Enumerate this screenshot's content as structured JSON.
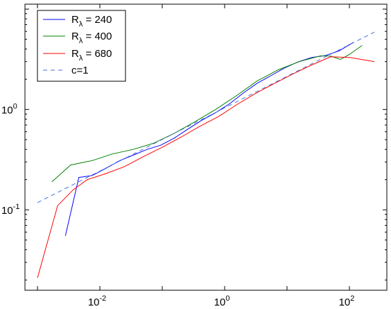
{
  "chart_data": {
    "type": "line",
    "title": "",
    "xlabel": "",
    "ylabel": "",
    "x_scale": "log",
    "y_scale": "log",
    "xlim": [
      0.00063,
      398
    ],
    "ylim": [
      0.0158,
      11.2
    ],
    "grid": false,
    "legend_position": "top-left",
    "x_ticks": [
      {
        "value": 0.01,
        "base": "10",
        "exp": "-2"
      },
      {
        "value": 1,
        "base": "10",
        "exp": "0"
      },
      {
        "value": 100,
        "base": "10",
        "exp": "2"
      }
    ],
    "y_ticks": [
      {
        "value": 0.1,
        "base": "10",
        "exp": "-1"
      },
      {
        "value": 1,
        "base": "10",
        "exp": "0"
      }
    ],
    "series": [
      {
        "name": "R_λ = 240",
        "label_main": "R",
        "label_sub": "λ",
        "label_rest": " = 240",
        "color": "#0000ff",
        "dash": "solid",
        "x": [
          0.0028,
          0.0046,
          0.0076,
          0.0126,
          0.021,
          0.034,
          0.057,
          0.094,
          0.157,
          0.26,
          0.43,
          0.72,
          1.2,
          2.0,
          3.3,
          5.5,
          9.1,
          15.1,
          25,
          42,
          69,
          115
        ],
        "y": [
          0.055,
          0.21,
          0.22,
          0.26,
          0.31,
          0.35,
          0.4,
          0.44,
          0.52,
          0.64,
          0.78,
          0.93,
          1.14,
          1.46,
          1.82,
          2.17,
          2.59,
          2.98,
          3.3,
          3.45,
          3.85,
          4.65
        ]
      },
      {
        "name": "R_λ = 400",
        "label_main": "R",
        "label_sub": "λ",
        "label_rest": " = 400",
        "color": "#008000",
        "dash": "solid",
        "x": [
          0.0017,
          0.0034,
          0.0076,
          0.0157,
          0.034,
          0.072,
          0.157,
          0.34,
          0.72,
          1.57,
          3.3,
          7.2,
          15.7,
          34,
          50,
          72,
          101,
          160
        ],
        "y": [
          0.19,
          0.28,
          0.31,
          0.36,
          0.4,
          0.46,
          0.58,
          0.76,
          1.0,
          1.38,
          1.92,
          2.48,
          3.0,
          3.42,
          3.4,
          3.15,
          3.55,
          4.35
        ]
      },
      {
        "name": "R_λ = 680",
        "label_main": "R",
        "label_sub": "λ",
        "label_rest": " = 680",
        "color": "#ff0000",
        "dash": "solid",
        "x": [
          0.001,
          0.0021,
          0.0038,
          0.0063,
          0.0126,
          0.025,
          0.05,
          0.1,
          0.2,
          0.4,
          0.8,
          1.58,
          3.16,
          6.3,
          12.6,
          25,
          50,
          100,
          251
        ],
        "y": [
          0.021,
          0.11,
          0.16,
          0.2,
          0.23,
          0.27,
          0.34,
          0.42,
          0.53,
          0.68,
          0.85,
          1.12,
          1.45,
          1.82,
          2.27,
          2.78,
          3.35,
          3.3,
          3.0
        ]
      },
      {
        "name": "c=1",
        "label_main": "c=1",
        "label_sub": "",
        "label_rest": "",
        "color": "#4a6fe0",
        "dash": "dashed",
        "x": [
          0.001,
          251
        ],
        "y": [
          0.118,
          5.9
        ]
      }
    ]
  }
}
